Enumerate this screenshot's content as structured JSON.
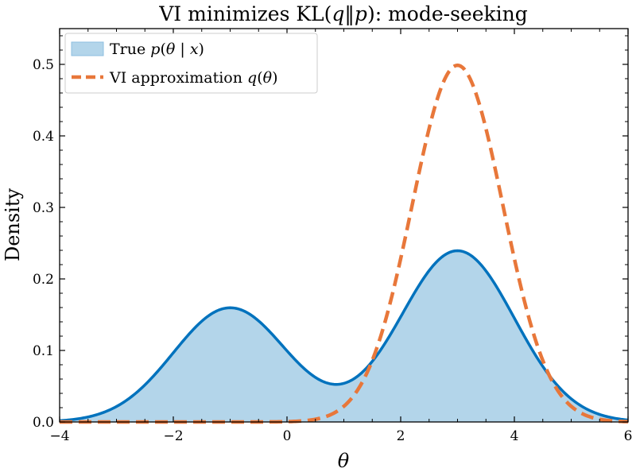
{
  "chart_data": {
    "type": "area",
    "title": {
      "main": "VI minimizes KL(",
      "q": "q",
      "sep": "‖",
      "p": "p",
      "rest": "): mode-seeking"
    },
    "xlabel": "θ",
    "ylabel": "Density",
    "xlim": [
      -4,
      6
    ],
    "ylim": [
      0,
      0.55
    ],
    "xticks": [
      -4,
      -2,
      0,
      2,
      4,
      6
    ],
    "xtick_labels": [
      "−4",
      "−2",
      "0",
      "2",
      "4",
      "6"
    ],
    "yticks": [
      0.0,
      0.1,
      0.2,
      0.3,
      0.4,
      0.5
    ],
    "ytick_labels": [
      "0.0",
      "0.1",
      "0.2",
      "0.3",
      "0.4",
      "0.5"
    ],
    "legend_position": "top-left",
    "series": [
      {
        "name": "True p(θ | x)",
        "legend": {
          "pre": "True ",
          "v1": "p",
          "open": "(",
          "v2": "θ",
          "bar": " | ",
          "v3": "x",
          "close": ")"
        },
        "style": "filled-line",
        "line_color": "#0072bd",
        "fill_color": "#b3d5ea",
        "components": [
          {
            "weight": 0.4,
            "mean": -1,
            "sd": 1.0
          },
          {
            "weight": 0.6,
            "mean": 3,
            "sd": 1.0
          }
        ],
        "x": [
          -4,
          -3,
          -2,
          -1,
          0,
          0.9,
          1,
          2,
          3,
          4,
          5,
          6
        ],
        "y": [
          0.0018,
          0.0216,
          0.0968,
          0.1596,
          0.0976,
          0.0538,
          0.0547,
          0.1453,
          0.2394,
          0.1452,
          0.0324,
          0.0027
        ]
      },
      {
        "name": "VI approximation q(θ)",
        "legend": {
          "pre": "VI approximation ",
          "v1": "q",
          "open": "(",
          "v2": "θ",
          "close": ")"
        },
        "style": "dashed",
        "line_color": "#e8773a",
        "components": [
          {
            "weight": 1.0,
            "mean": 3,
            "sd": 0.8
          }
        ],
        "x": [
          -4,
          0,
          1,
          1.5,
          2,
          2.5,
          3,
          3.5,
          4,
          4.5,
          5,
          6
        ],
        "y": [
          0.0,
          0.0004,
          0.0219,
          0.086,
          0.2283,
          0.4112,
          0.4987,
          0.4112,
          0.2283,
          0.086,
          0.0219,
          0.0004
        ]
      }
    ]
  }
}
